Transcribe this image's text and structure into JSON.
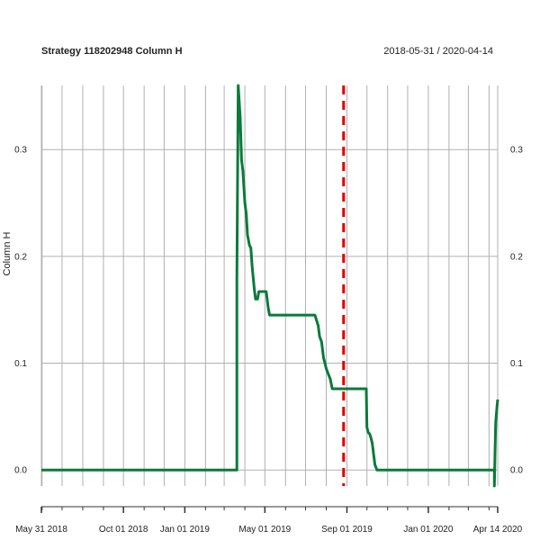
{
  "chart_data": {
    "type": "line",
    "title": "Strategy 118202948 Column H",
    "date_range": "2018-05-31 / 2020-04-14",
    "ylabel": "Column H",
    "xlabel": "",
    "ylim": [
      -0.015,
      0.36
    ],
    "xlim": [
      "2018-05-31",
      "2020-04-14"
    ],
    "grid": true,
    "y_ticks": [
      0.0,
      0.1,
      0.2,
      0.3
    ],
    "y_tick_labels": [
      "0.0",
      "0.1",
      "0.2",
      "0.3"
    ],
    "x_ticks": [
      {
        "date": "2018-05-31",
        "label": "May 31 2018"
      },
      {
        "date": "2018-10-01",
        "label": "Oct 01 2018"
      },
      {
        "date": "2019-01-01",
        "label": "Jan 01 2019"
      },
      {
        "date": "2019-05-01",
        "label": "May 01 2019"
      },
      {
        "date": "2019-09-01",
        "label": "Sep 01 2019"
      },
      {
        "date": "2020-01-01",
        "label": "Jan 01 2020"
      },
      {
        "date": "2020-04-14",
        "label": "Apr 14 2020"
      }
    ],
    "vline": {
      "date": "2019-08-27",
      "color": "#dd0000",
      "style": "dashed"
    },
    "series": [
      {
        "color": "#0a7a3a",
        "x": [
          "2018-05-31",
          "2019-03-20",
          "2019-03-20",
          "2019-03-22",
          "2019-03-25",
          "2019-03-27",
          "2019-03-29",
          "2019-04-01",
          "2019-04-03",
          "2019-04-05",
          "2019-04-08",
          "2019-04-10",
          "2019-04-12",
          "2019-04-15",
          "2019-04-17",
          "2019-04-20",
          "2019-04-22",
          "2019-04-24",
          "2019-04-26",
          "2019-04-29",
          "2019-05-01",
          "2019-05-03",
          "2019-05-06",
          "2019-05-08",
          "2019-05-15",
          "2019-05-20",
          "2019-05-28",
          "2019-05-30",
          "2019-06-01",
          "2019-06-05",
          "2019-06-15",
          "2019-07-01",
          "2019-07-15",
          "2019-07-20",
          "2019-07-22",
          "2019-07-25",
          "2019-07-28",
          "2019-08-01",
          "2019-08-04",
          "2019-08-07",
          "2019-08-10",
          "2019-08-13",
          "2019-08-16",
          "2019-08-20",
          "2019-09-01",
          "2019-09-15",
          "2019-09-30",
          "2019-10-01",
          "2019-10-03",
          "2019-10-05",
          "2019-10-07",
          "2019-10-09",
          "2019-10-11",
          "2019-10-13",
          "2019-10-16",
          "2019-10-20",
          "2019-11-01",
          "2019-12-01",
          "2020-01-01",
          "2020-02-01",
          "2020-03-01",
          "2020-04-09",
          "2020-04-09",
          "2020-04-10",
          "2020-04-11",
          "2020-04-13",
          "2020-04-14"
        ],
        "y": [
          0.0,
          0.0,
          0.18,
          0.36,
          0.33,
          0.29,
          0.28,
          0.25,
          0.24,
          0.22,
          0.21,
          0.208,
          0.19,
          0.17,
          0.16,
          0.16,
          0.167,
          0.167,
          0.167,
          0.167,
          0.167,
          0.167,
          0.152,
          0.145,
          0.145,
          0.145,
          0.145,
          0.145,
          0.145,
          0.145,
          0.145,
          0.145,
          0.145,
          0.135,
          0.125,
          0.12,
          0.105,
          0.095,
          0.09,
          0.085,
          0.076,
          0.076,
          0.076,
          0.076,
          0.076,
          0.076,
          0.076,
          0.04,
          0.035,
          0.034,
          0.03,
          0.025,
          0.015,
          0.005,
          0.0,
          0.0,
          0.0,
          0.0,
          0.0,
          0.0,
          0.0,
          0.0,
          -0.015,
          0.015,
          0.045,
          0.06,
          0.066
        ]
      }
    ]
  }
}
